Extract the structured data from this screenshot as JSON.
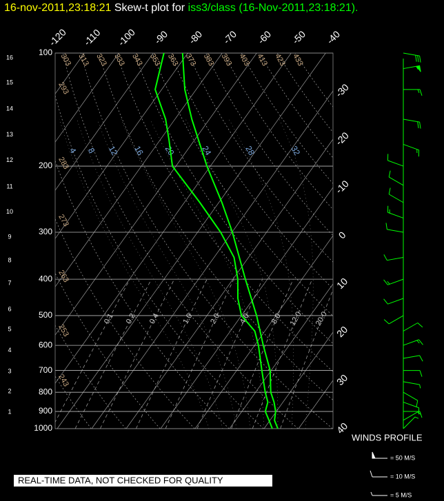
{
  "header": {
    "date": "16-nov-2011,23:18:21",
    "title": "Skew-t plot for",
    "source": "iss3/class (16-Nov-2011,23:18:21)."
  },
  "chart_data": {
    "type": "skew-t",
    "ylim": [
      1000,
      100
    ],
    "log_scale": true,
    "yticks": [
      100,
      200,
      300,
      400,
      500,
      600,
      700,
      800,
      900,
      1000
    ],
    "xticks": [
      -120,
      -110,
      -100,
      -90,
      -80,
      -70,
      -60,
      -50,
      -40,
      -30,
      -20,
      -10,
      0,
      10,
      20,
      30,
      40
    ],
    "height_km_ticks": [
      1,
      2,
      3,
      4,
      5,
      6,
      7,
      8,
      9,
      10,
      11,
      12,
      13,
      14,
      15,
      16
    ],
    "height_km_pressures": [
      904,
      796,
      704,
      620,
      544,
      482,
      410,
      357,
      309,
      265,
      227,
      193,
      165,
      141,
      120,
      103
    ],
    "dry_adiabats": [
      243,
      253,
      263,
      273,
      283,
      293,
      303,
      313,
      323,
      333,
      343,
      353,
      363,
      373,
      383,
      393,
      403,
      413,
      423,
      433
    ],
    "moist_adiabats": [
      4,
      8,
      12,
      16,
      20,
      24,
      28,
      32
    ],
    "mixing_ratios": [
      0.1,
      0.2,
      0.4,
      {
        "value": 1,
        "label": "1.0"
      },
      {
        "value": 2,
        "label": "2.0"
      },
      {
        "value": 4,
        "label": "4.0"
      },
      {
        "value": 8,
        "label": "8.0"
      },
      {
        "value": 12,
        "label": "12.0"
      },
      {
        "value": 20,
        "label": "20.0"
      }
    ],
    "grid": true,
    "series": [
      {
        "color": "#00ff00",
        "pressure": [
          1000,
          950,
          900,
          850,
          800,
          700,
          600,
          500,
          400,
          300,
          250,
          200,
          150,
          125,
          100
        ],
        "values": [
          24.0,
          21.3,
          19.8,
          17.4,
          14.4,
          9.7,
          2.5,
          -5.6,
          -16.4,
          -29.9,
          -39.1,
          -51.0,
          -65.1,
          -73.3,
          -81.5
        ]
      },
      {
        "color": "#00ff00",
        "pressure": [
          1000,
          950,
          900,
          850,
          800,
          700,
          600,
          550,
          500,
          450,
          400,
          350,
          300,
          250,
          200,
          170,
          150,
          125,
          100
        ],
        "values": [
          22.4,
          19.7,
          16.8,
          15.6,
          12.8,
          7.3,
          1.1,
          -2.9,
          -10.0,
          -14.6,
          -18.6,
          -24.2,
          -33.3,
          -45.5,
          -61.0,
          -67.5,
          -72.7,
          -81.9,
          -86.9
        ]
      }
    ],
    "winds": {
      "title": "WINDS PROFILE",
      "color": "#00ff00",
      "pressure": [
        1000,
        950,
        900,
        850,
        800,
        750,
        700,
        650,
        600,
        550,
        500,
        450,
        400,
        350,
        300,
        275,
        250,
        225,
        200,
        175,
        150,
        125,
        110,
        100
      ],
      "speed": [
        5,
        5,
        10,
        10,
        10,
        5,
        10,
        10,
        15,
        10,
        10,
        10,
        15,
        10,
        10,
        15,
        10,
        10,
        10,
        15,
        20,
        15,
        55,
        30
      ],
      "direction": [
        45,
        60,
        90,
        110,
        120,
        100,
        90,
        80,
        70,
        60,
        240,
        250,
        250,
        260,
        280,
        290,
        300,
        300,
        290,
        110,
        100,
        90,
        80,
        100
      ],
      "legend": [
        {
          "speed": 50,
          "label": "= 50 M/S"
        },
        {
          "speed": 10,
          "label": "= 10 M/S"
        },
        {
          "speed": 5,
          "label": "= 5 M/S"
        }
      ]
    },
    "footer": "REAL-TIME DATA, NOT CHECKED FOR QUALITY"
  }
}
